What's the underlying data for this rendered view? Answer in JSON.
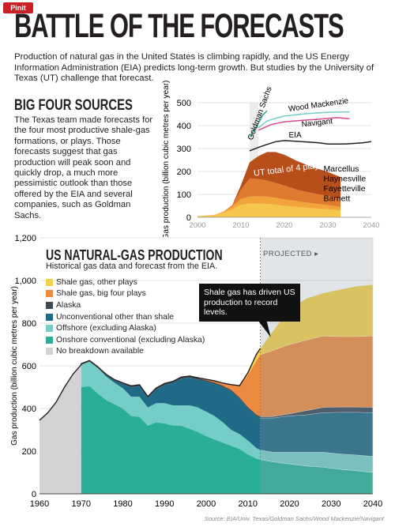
{
  "badge": "Pinit",
  "title": "BATTLE OF THE FORECASTS",
  "intro": "Production of natural gas in the United States is climbing rapidly, and the US Energy Information Administration (EIA) predicts long-term growth. But studies by the University of Texas (UT) challenge that forecast.",
  "section_heading": "BIG FOUR SOURCES",
  "section_body": "The Texas team made forecasts for the four most productive shale-gas formations, or plays. Those forecasts suggest that gas production will peak soon and quickly drop, a much more pessimistic outlook than those offered by the EIA and several companies, such as Goldman Sachs.",
  "source": "Source: EIA/Univ. Texas/Goldman Sachs/Wood Mackenzie/Navigant",
  "colors": {
    "shale_other": "#f3d04a",
    "shale_big4": "#ed8a3f",
    "alaska": "#3d4a57",
    "unconventional": "#1f6a86",
    "offshore": "#74cec7",
    "onshore": "#2bae98",
    "no_breakdown": "#d3d3d3",
    "projected_overlay": "#8a9aa6"
  },
  "chart_data": [
    {
      "type": "area",
      "ylabel": "Gas production (billion cubic metres per year)",
      "xlim": [
        2000,
        2040
      ],
      "ylim": [
        0,
        500
      ],
      "x_ticks": [
        2000,
        2010,
        2020,
        2030,
        2040
      ],
      "y_ticks": [
        0,
        100,
        200,
        300,
        400,
        500
      ],
      "annotation": "UT total of 4 plays",
      "stack_labels": [
        "Marcellus",
        "Haynesville",
        "Fayetteville",
        "Barnett"
      ],
      "stack_x": [
        2000,
        2004,
        2006,
        2008,
        2010,
        2012,
        2014,
        2016,
        2018,
        2020,
        2023,
        2026,
        2030,
        2033
      ],
      "stack": [
        {
          "name": "Barnett",
          "values": [
            5,
            10,
            20,
            35,
            55,
            60,
            60,
            58,
            55,
            50,
            45,
            40,
            35,
            30
          ]
        },
        {
          "name": "Fayetteville",
          "values": [
            0,
            1,
            5,
            12,
            25,
            30,
            32,
            32,
            30,
            28,
            25,
            22,
            18,
            15
          ]
        },
        {
          "name": "Haynesville",
          "values": [
            0,
            0,
            0,
            5,
            40,
            80,
            75,
            70,
            65,
            60,
            50,
            45,
            40,
            35
          ]
        },
        {
          "name": "Marcellus",
          "values": [
            0,
            0,
            0,
            1,
            20,
            70,
            100,
            125,
            135,
            135,
            125,
            115,
            105,
            95
          ]
        }
      ],
      "lines": [
        {
          "name": "Goldman Sachs",
          "x": [
            2012,
            2013,
            2014,
            2015,
            2016
          ],
          "values": [
            350,
            380,
            410,
            445,
            465
          ]
        },
        {
          "name": "Wood Mackenzie",
          "x": [
            2014,
            2016,
            2018,
            2020,
            2022,
            2025,
            2030,
            2035
          ],
          "values": [
            390,
            420,
            432,
            442,
            446,
            452,
            458,
            460
          ]
        },
        {
          "name": "Navigant",
          "x": [
            2014,
            2017,
            2020,
            2024,
            2028,
            2032,
            2035
          ],
          "values": [
            380,
            405,
            417,
            423,
            428,
            435,
            430
          ]
        },
        {
          "name": "EIA",
          "x": [
            2012,
            2014,
            2016,
            2018,
            2020,
            2024,
            2028,
            2030,
            2034,
            2038,
            2040
          ],
          "values": [
            290,
            305,
            318,
            330,
            335,
            330,
            325,
            320,
            320,
            325,
            330
          ]
        }
      ]
    },
    {
      "type": "area",
      "title": "US NATURAL-GAS PRODUCTION",
      "subtitle": "Historical gas data and forecast from the EIA.",
      "ylabel": "Gas production (billion cubic metres per year)",
      "xlim": [
        1960,
        2040
      ],
      "ylim": [
        0,
        1200
      ],
      "x_ticks": [
        1960,
        1970,
        1980,
        1990,
        2000,
        2010,
        2020,
        2030,
        2040
      ],
      "y_ticks": [
        0,
        200,
        400,
        600,
        800,
        1000,
        1200
      ],
      "y_tick_labels": [
        "0",
        "200",
        "400",
        "600",
        "800",
        "1,000",
        "1,200"
      ],
      "projected_label": "PROJECTED",
      "projected_start": 2013,
      "callout": "Shale gas has driven US production to record levels.",
      "legend": [
        {
          "name": "Shale gas, other plays",
          "color": "#f3d04a"
        },
        {
          "name": "Shale gas, big four plays",
          "color": "#ed8a3f"
        },
        {
          "name": "Alaska",
          "color": "#3d4a57"
        },
        {
          "name": "Unconventional other than shale",
          "color": "#1f6a86"
        },
        {
          "name": "Offshore (excluding Alaska)",
          "color": "#74cec7"
        },
        {
          "name": "Onshore conventional (excluding Alaska)",
          "color": "#2bae98"
        },
        {
          "name": "No breakdown available",
          "color": "#d3d3d3"
        }
      ],
      "no_breakdown": {
        "x": [
          1960,
          1962,
          1964,
          1966,
          1968,
          1970
        ],
        "values": [
          345,
          380,
          430,
          500,
          560,
          605
        ]
      },
      "x": [
        1970,
        1972,
        1974,
        1976,
        1978,
        1980,
        1982,
        1984,
        1986,
        1988,
        1990,
        1992,
        1994,
        1996,
        1998,
        2000,
        2002,
        2004,
        2006,
        2008,
        2010,
        2012,
        2013,
        2016,
        2020,
        2024,
        2028,
        2032,
        2036,
        2040
      ],
      "series": [
        {
          "name": "Onshore conventional (excluding Alaska)",
          "values": [
            500,
            505,
            470,
            440,
            420,
            400,
            365,
            360,
            320,
            335,
            330,
            320,
            320,
            305,
            290,
            270,
            255,
            240,
            225,
            210,
            185,
            165,
            160,
            150,
            140,
            130,
            125,
            115,
            108,
            100
          ]
        },
        {
          "name": "Offshore (excluding Alaska)",
          "values": [
            105,
            115,
            120,
            110,
            100,
            95,
            90,
            95,
            85,
            90,
            95,
            95,
            95,
            110,
            115,
            115,
            110,
            95,
            75,
            70,
            65,
            50,
            45,
            45,
            55,
            65,
            70,
            72,
            74,
            75
          ]
        },
        {
          "name": "Unconventional other than shale",
          "values": [
            0,
            0,
            0,
            5,
            10,
            20,
            45,
            50,
            45,
            65,
            85,
            105,
            125,
            130,
            130,
            140,
            150,
            165,
            180,
            165,
            150,
            150,
            150,
            160,
            170,
            175,
            185,
            195,
            200,
            205
          ]
        },
        {
          "name": "Alaska",
          "values": [
            5,
            5,
            5,
            5,
            5,
            5,
            6,
            6,
            6,
            6,
            7,
            7,
            7,
            7,
            7,
            7,
            7,
            7,
            7,
            7,
            7,
            7,
            7,
            7,
            10,
            20,
            25,
            25,
            25,
            25
          ]
        },
        {
          "name": "Shale gas, big four plays",
          "values": [
            0,
            0,
            0,
            0,
            0,
            0,
            0,
            0,
            0,
            0,
            0,
            0,
            0,
            0,
            2,
            5,
            8,
            12,
            25,
            55,
            150,
            250,
            290,
            310,
            325,
            330,
            335,
            330,
            330,
            335
          ]
        },
        {
          "name": "Shale gas, other plays",
          "values": [
            0,
            0,
            0,
            0,
            0,
            0,
            0,
            0,
            0,
            0,
            0,
            0,
            0,
            0,
            0,
            0,
            0,
            0,
            0,
            0,
            10,
            30,
            30,
            90,
            165,
            195,
            200,
            220,
            235,
            240
          ]
        }
      ]
    }
  ]
}
